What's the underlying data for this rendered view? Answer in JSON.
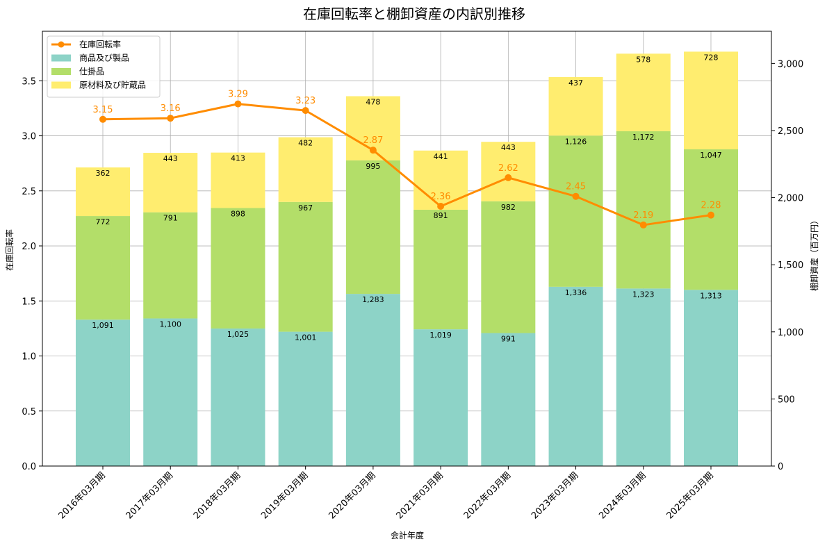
{
  "chart_data": {
    "type": "bar",
    "title": "在庫回転率と棚卸資産の内訳別推移",
    "xlabel": "会計年度",
    "ylabel_left": "在庫回転率",
    "ylabel_right": "棚卸資産（百万円）",
    "categories": [
      "2016年03月期",
      "2017年03月期",
      "2018年03月期",
      "2019年03月期",
      "2020年03月期",
      "2021年03月期",
      "2022年03月期",
      "2023年03月期",
      "2024年03月期",
      "2025年03月期"
    ],
    "stacked_series": [
      {
        "name": "商品及び製品",
        "color": "#8dd3c7",
        "values": [
          1091,
          1100,
          1025,
          1001,
          1283,
          1019,
          991,
          1336,
          1323,
          1313
        ],
        "labels": [
          "1,091",
          "1,100",
          "1,025",
          "1,001",
          "1,283",
          "1,019",
          "991",
          "1,336",
          "1,323",
          "1,313"
        ]
      },
      {
        "name": "仕掛品",
        "color": "#b3de69",
        "values": [
          772,
          791,
          898,
          967,
          995,
          891,
          982,
          1126,
          1172,
          1047
        ],
        "labels": [
          "772",
          "791",
          "898",
          "967",
          "995",
          "891",
          "982",
          "1,126",
          "1,172",
          "1,047"
        ]
      },
      {
        "name": "原材料及び貯蔵品",
        "color": "#ffed6f",
        "values": [
          362,
          443,
          413,
          482,
          478,
          441,
          443,
          437,
          578,
          728
        ],
        "labels": [
          "362",
          "443",
          "413",
          "482",
          "478",
          "441",
          "443",
          "437",
          "578",
          "728"
        ]
      }
    ],
    "line_series": {
      "name": "在庫回転率",
      "color": "#ff8c00",
      "values": [
        3.15,
        3.16,
        3.29,
        3.23,
        2.87,
        2.36,
        2.62,
        2.45,
        2.19,
        2.28
      ],
      "labels": [
        "3.15",
        "3.16",
        "3.29",
        "3.23",
        "2.87",
        "2.36",
        "2.62",
        "2.45",
        "2.19",
        "2.28"
      ]
    },
    "y_left": {
      "range": [
        0,
        3.95
      ],
      "ticks": [
        "0.0",
        "0.5",
        "1.0",
        "1.5",
        "2.0",
        "2.5",
        "3.0",
        "3.5"
      ]
    },
    "y_right": {
      "range": [
        0,
        3240
      ],
      "ticks": [
        "0",
        "500",
        "1,000",
        "1,500",
        "2,000",
        "2,500",
        "3,000"
      ]
    },
    "grid": true,
    "legend_position": "top-left"
  }
}
